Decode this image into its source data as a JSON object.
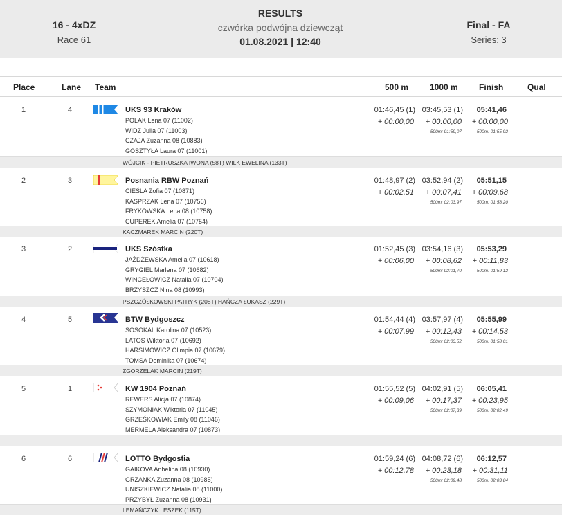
{
  "header": {
    "event_code": "16 - 4xDZ",
    "race": "Race 61",
    "title": "RESULTS",
    "subtitle": "czwórka podwójna dziewcząt",
    "datetime": "01.08.2021 | 12:40",
    "final": "Final - FA",
    "series": "Series: 3"
  },
  "columns": {
    "place": "Place",
    "lane": "Lane",
    "team": "Team",
    "m500": "500 m",
    "m1000": "1000 m",
    "finish": "Finish",
    "qual": "Qual"
  },
  "rows": [
    {
      "place": "1",
      "lane": "4",
      "team": "UKS 93 Kraków",
      "flag": {
        "icon": "club-flag-icon",
        "colors": [
          "#1e88e5",
          "#ffffff"
        ]
      },
      "crew": [
        "POLAK  Lena 07 (11002)",
        "WIDZ  Julia 07 (11003)",
        "CZAJA  Zuzanna 08 (10883)",
        "GOSZTYŁA  Laura 07 (11001)"
      ],
      "t500": "01:46,45 (1)",
      "d500": "+ 00:00,00",
      "t1000": "03:45,53 (1)",
      "d1000": "+ 00:00,00",
      "p1000": "500m: 01:59,07",
      "finish": "05:41,46",
      "dfinish": "+ 00:00,00",
      "pfinish": "500m: 01:55,92",
      "coach": "WÓJCIK - PIETRUSZKA IWONA (58T) WILK EWELINA (133T)"
    },
    {
      "place": "2",
      "lane": "3",
      "team": "Posnania RBW Poznań",
      "flag": {
        "icon": "club-flag-icon",
        "colors": [
          "#fff59d",
          "#e53935"
        ]
      },
      "crew": [
        "CIEŚLA  Zofia 07 (10871)",
        "KASPRZAK  Lena 07 (10756)",
        "FRYKOWSKA  Lena 08 (10758)",
        "CUPEREK  Amelia 07 (10754)"
      ],
      "t500": "01:48,97 (2)",
      "d500": "+ 00:02,51",
      "t1000": "03:52,94 (2)",
      "d1000": "+ 00:07,41",
      "p1000": "500m: 02:03,97",
      "finish": "05:51,15",
      "dfinish": "+ 00:09,68",
      "pfinish": "500m: 01:58,20",
      "coach": "KACZMAREK MARCIN (220T)"
    },
    {
      "place": "3",
      "lane": "2",
      "team": "UKS Szóstka",
      "flag": {
        "icon": "club-flag-icon",
        "colors": [
          "#1a237e",
          "#ffffff"
        ]
      },
      "crew": [
        "JAŻDŻEWSKA  Amelia 07 (10618)",
        "GRYGIEL  Marlena 07 (10682)",
        "WINCEŁOWICZ  Natalia 07 (10704)",
        "BRZYSZCZ  Nina 08 (10993)"
      ],
      "t500": "01:52,45 (3)",
      "d500": "+ 00:06,00",
      "t1000": "03:54,16 (3)",
      "d1000": "+ 00:08,62",
      "p1000": "500m: 02:01,70",
      "finish": "05:53,29",
      "dfinish": "+ 00:11,83",
      "pfinish": "500m: 01:59,12",
      "coach": "PSZCZÓŁKOWSKI PATRYK (208T) HAŃCZA ŁUKASZ (229T)"
    },
    {
      "place": "4",
      "lane": "5",
      "team": "BTW Bydgoszcz",
      "flag": {
        "icon": "club-flag-icon",
        "colors": [
          "#283593",
          "#e53935"
        ]
      },
      "crew": [
        "SOSOKAL  Karolina 07 (10523)",
        "LATOS  Wiktoria 07 (10692)",
        "HARSIMOWICZ  Olimpia 07 (10679)",
        "TOMSA  Dominika 07 (10674)"
      ],
      "t500": "01:54,44 (4)",
      "d500": "+ 00:07,99",
      "t1000": "03:57,97 (4)",
      "d1000": "+ 00:12,43",
      "p1000": "500m: 02:03,52",
      "finish": "05:55,99",
      "dfinish": "+ 00:14,53",
      "pfinish": "500m: 01:58,01",
      "coach": "ZGORZELAK MARCIN (219T)"
    },
    {
      "place": "5",
      "lane": "1",
      "team": "KW 1904 Poznań",
      "flag": {
        "icon": "club-flag-icon",
        "colors": [
          "#ffffff",
          "#e53935"
        ]
      },
      "crew": [
        "REWERS  Alicja 07 (10874)",
        "SZYMONIAK  Wiktoria 07 (11045)",
        "GRZEŚKOWIAK  Emily 08 (11046)",
        "MERMELA  Aleksandra 07 (10873)"
      ],
      "t500": "01:55,52 (5)",
      "d500": "+ 00:09,06",
      "t1000": "04:02,91 (5)",
      "d1000": "+ 00:17,37",
      "p1000": "500m: 02:07,39",
      "finish": "06:05,41",
      "dfinish": "+ 00:23,95",
      "pfinish": "500m: 02:02,49",
      "coach": ""
    },
    {
      "place": "6",
      "lane": "6",
      "team": "LOTTO Bydgostia",
      "flag": {
        "icon": "club-flag-icon",
        "colors": [
          "#1a237e",
          "#e53935"
        ]
      },
      "crew": [
        "GAIKOVA  Anhelina 08 (10930)",
        "GRZANKA  Zuzanna 08 (10985)",
        "UNISZKIEWICZ  Natalia 08 (11000)",
        "PRZYBYŁ  Zuzanna 08 (10931)"
      ],
      "t500": "01:59,24 (6)",
      "d500": "+ 00:12,78",
      "t1000": "04:08,72 (6)",
      "d1000": "+ 00:23,18",
      "p1000": "500m: 02:09,48",
      "finish": "06:12,57",
      "dfinish": "+ 00:31,11",
      "pfinish": "500m: 02:03,84",
      "coach": "LEMAŃCZYK LESZEK (115T)"
    }
  ]
}
